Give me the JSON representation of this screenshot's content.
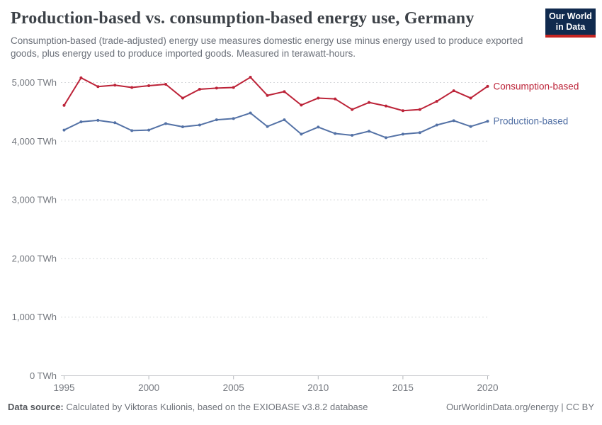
{
  "header": {
    "title": "Production-based vs. consumption-based energy use, Germany",
    "subtitle": "Consumption-based (trade-adjusted) energy use measures domestic energy use minus energy used to produce exported goods, plus energy used to produce imported goods. Measured in terawatt-hours.",
    "logo": {
      "line1": "Our World",
      "line2": "in Data",
      "bg_color": "#102a4e",
      "stripe_color": "#c52421"
    }
  },
  "chart_data": {
    "type": "line",
    "title": "Production-based vs. consumption-based energy use, Germany",
    "unit": "TWh",
    "x": [
      1995,
      1996,
      1997,
      1998,
      1999,
      2000,
      2001,
      2002,
      2003,
      2004,
      2005,
      2006,
      2007,
      2008,
      2009,
      2010,
      2011,
      2012,
      2013,
      2014,
      2015,
      2016,
      2017,
      2018,
      2019,
      2020
    ],
    "series": [
      {
        "name": "Consumption-based",
        "color": "#bc2338",
        "values": [
          4610,
          5080,
          4930,
          4955,
          4915,
          4945,
          4970,
          4735,
          4885,
          4905,
          4915,
          5090,
          4780,
          4845,
          4615,
          4735,
          4720,
          4540,
          4660,
          4600,
          4520,
          4540,
          4680,
          4860,
          4735,
          4935
        ]
      },
      {
        "name": "Production-based",
        "color": "#5472a6",
        "values": [
          4190,
          4330,
          4355,
          4315,
          4180,
          4190,
          4300,
          4245,
          4275,
          4365,
          4385,
          4480,
          4250,
          4365,
          4120,
          4240,
          4130,
          4100,
          4170,
          4060,
          4120,
          4145,
          4275,
          4350,
          4250,
          4340
        ]
      }
    ],
    "xlabel": "",
    "ylabel": "",
    "ylim": [
      0,
      5300
    ],
    "yticks": [
      0,
      1000,
      2000,
      3000,
      4000,
      5000
    ],
    "ytick_labels": [
      "0 TWh",
      "1,000 TWh",
      "2,000 TWh",
      "3,000 TWh",
      "4,000 TWh",
      "5,000 TWh"
    ],
    "xticks": [
      1995,
      2000,
      2005,
      2010,
      2015,
      2020
    ],
    "xtick_labels": [
      "1995",
      "2000",
      "2005",
      "2010",
      "2015",
      "2020"
    ],
    "grid": "horizontal-dashed",
    "legend_position": "end-of-line-labels"
  },
  "footer": {
    "source_label": "Data source:",
    "source_text": "Calculated by Viktoras Kulionis, based on the EXIOBASE v3.8.2 database",
    "credit": "OurWorldinData.org/energy | CC BY"
  }
}
